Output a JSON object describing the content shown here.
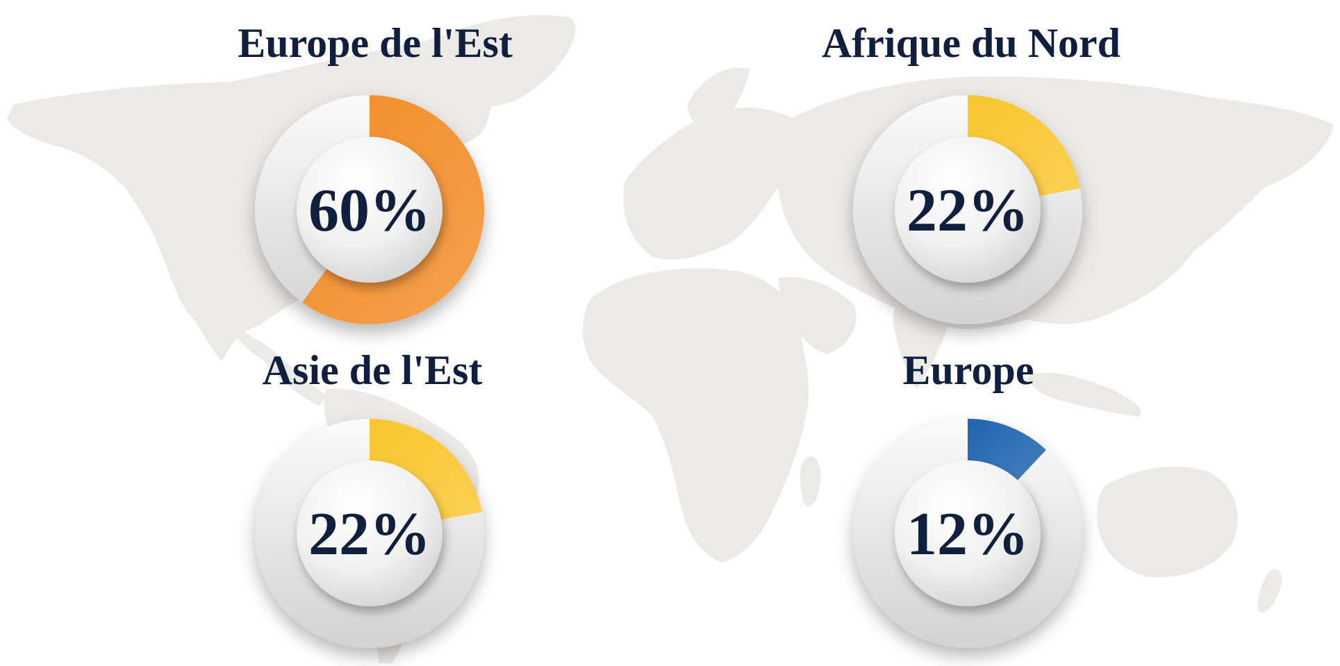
{
  "chart_data": [
    {
      "type": "pie",
      "title": "Europe de l'Est",
      "value": 60,
      "label": "60%",
      "color": "#F28C28"
    },
    {
      "type": "pie",
      "title": "Afrique du Nord",
      "value": 22,
      "label": "22%",
      "color": "#F9C62E"
    },
    {
      "type": "pie",
      "title": "Asie de l'Est",
      "value": 22,
      "label": "22%",
      "color": "#F9C62E"
    },
    {
      "type": "pie",
      "title": "Europe",
      "value": 12,
      "label": "12%",
      "color": "#1F64B0"
    }
  ],
  "map_color": "#EDEBE8",
  "text_color": "#0F1F3D"
}
